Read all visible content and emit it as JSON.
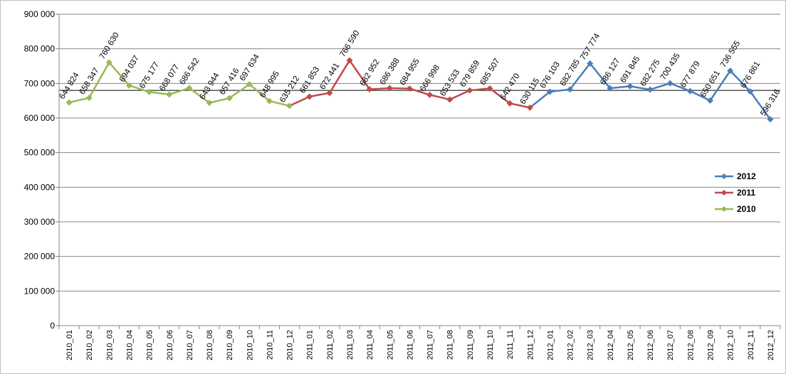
{
  "chart_data": {
    "type": "line",
    "title": "",
    "xlabel": "",
    "ylabel": "",
    "ylim": [
      0,
      900000
    ],
    "yticks": [
      0,
      100000,
      200000,
      300000,
      400000,
      500000,
      600000,
      700000,
      800000,
      900000
    ],
    "ytick_labels": [
      "0",
      "100 000",
      "200 000",
      "300 000",
      "400 000",
      "500 000",
      "600 000",
      "700 000",
      "800 000",
      "900 000"
    ],
    "grid": true,
    "legend_position": "right",
    "reference_line": 680000,
    "categories": [
      "2010_01",
      "2010_02",
      "2010_03",
      "2010_04",
      "2010_05",
      "2010_06",
      "2010_07",
      "2010_08",
      "2010_09",
      "2010_10",
      "2010_11",
      "2010_12",
      "2011_01",
      "2011_02",
      "2011_03",
      "2011_04",
      "2011_05",
      "2011_06",
      "2011_07",
      "2011_08",
      "2011_09",
      "2011_10",
      "2011_11",
      "2011_12",
      "2012_01",
      "2012_02",
      "2012_03",
      "2012_04",
      "2012_05",
      "2012_06",
      "2012_07",
      "2012_08",
      "2012_09",
      "2012_10",
      "2012_11",
      "2012_12"
    ],
    "values": [
      644824,
      658347,
      760630,
      694037,
      675177,
      668077,
      686542,
      643944,
      657416,
      697634,
      648995,
      635212,
      661853,
      672441,
      766590,
      682952,
      686388,
      684955,
      666998,
      653533,
      679859,
      685507,
      642470,
      630115,
      676103,
      682785,
      757774,
      686127,
      691845,
      682275,
      700435,
      677879,
      650651,
      736555,
      676861,
      596316
    ],
    "value_labels": [
      "644 824",
      "658 347",
      "760 630",
      "694 037",
      "675 177",
      "668 077",
      "686 542",
      "643 944",
      "657 416",
      "697 634",
      "648 995",
      "635 212",
      "661 853",
      "672 441",
      "766 590",
      "682 952",
      "686 388",
      "684 955",
      "666 998",
      "653 533",
      "679 859",
      "685 507",
      "642 470",
      "630 115",
      "676 103",
      "682 785",
      "757 774",
      "686 127",
      "691 845",
      "682 275",
      "700 435",
      "677 879",
      "650 651",
      "736 555",
      "676 861",
      "596 316"
    ],
    "series": [
      {
        "name": "2012",
        "color": "#4a7ebb",
        "start": 23,
        "end": 35
      },
      {
        "name": "2011",
        "color": "#be4b48",
        "start": 11,
        "end": 23
      },
      {
        "name": "2010",
        "color": "#98b954",
        "start": 0,
        "end": 11
      }
    ]
  }
}
